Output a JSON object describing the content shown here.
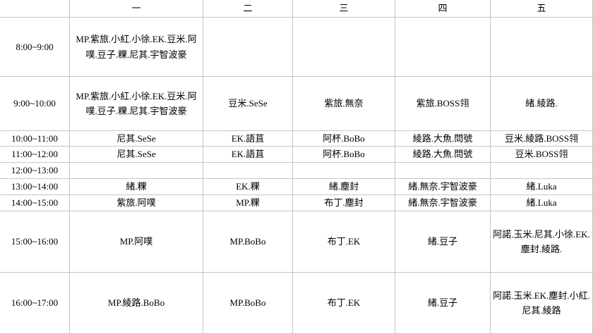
{
  "table": {
    "corner": "",
    "columns": [
      "",
      "一",
      "二",
      "三",
      "四",
      "五"
    ],
    "grid_color": "#c6c6c6",
    "text_color": "#000000",
    "background_color": "#ffffff",
    "rows": [
      {
        "time": "8:00~9:00",
        "cells": [
          "MP.紫旅.小紅.小徐.EK.豆米.阿噗.豆子.粿.尼其.宇智波豪",
          "",
          "",
          "",
          ""
        ]
      },
      {
        "time": "9:00~10:00",
        "cells": [
          "MP.紫旅.小紅.小徐.EK.豆米.阿噗.豆子.粿.尼其.宇智波豪",
          "豆米.SeSe",
          "紫旅.無奈",
          "紫旅.BOSS翎",
          "緒.綾路."
        ]
      },
      {
        "time": "10:00~11:00",
        "cells": [
          "尼其.SeSe",
          "EK.語苴",
          "阿杯.BoBo",
          "綾路.大魚.問號",
          "豆米.綾路.BOSS翎"
        ]
      },
      {
        "time": "11:00~12:00",
        "cells": [
          "尼其.SeSe",
          "EK.語苴",
          "阿杯.BoBo",
          "綾路.大魚.問號",
          "豆米.BOSS翎"
        ]
      },
      {
        "time": "12:00~13:00",
        "cells": [
          "",
          "",
          "",
          "",
          ""
        ]
      },
      {
        "time": "13:00~14:00",
        "cells": [
          "緒.粿",
          "EK.粿",
          "緒.塵封",
          "緒.無奈.宇智波豪",
          "緒.Luka"
        ]
      },
      {
        "time": "14:00~15:00",
        "cells": [
          "紫旅.阿噗",
          "MP.粿",
          "布丁.塵封",
          "緒.無奈.宇智波豪",
          "緒.Luka"
        ]
      },
      {
        "time": "15:00~16:00",
        "cells": [
          "MP.阿噗",
          "MP.BoBo",
          "布丁.EK",
          "緒.豆子",
          "阿諾.玉米.尼其.小徐.EK.塵封.綾路."
        ]
      },
      {
        "time": "16:00~17:00",
        "cells": [
          "MP.綾路.BoBo",
          "MP.BoBo",
          "布丁.EK",
          "緒.豆子",
          "阿諾.玉米.EK.塵封.小紅.尼其.綾路"
        ]
      }
    ]
  }
}
